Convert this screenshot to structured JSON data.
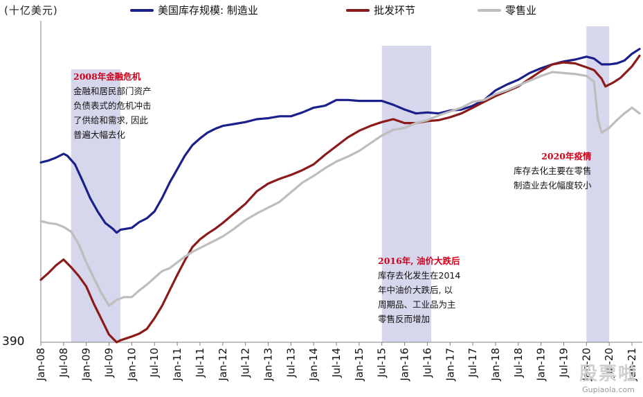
{
  "unit_label": "(十亿美元)",
  "y_min_label": "390",
  "watermark": {
    "logo_text": "股票啦",
    "site": "Gupiaola.com"
  },
  "annotations": {
    "crisis2008": {
      "title": "2008年金融危机",
      "lines": [
        "金融和居民部门资产",
        "负债表式的危机冲击",
        "了供给和需求, 因此",
        "普遍大幅去化"
      ]
    },
    "oil2016": {
      "title": "2016年, 油价大跌后",
      "lines": [
        "库存去化发生在2014",
        "年中油价大跌后, 以",
        "周期品、工业品为主",
        "零售反而增加"
      ]
    },
    "covid2020": {
      "title": "2020年疫情",
      "lines": [
        "库存去化主要在零售",
        "制造业去化幅度较小"
      ]
    }
  },
  "colors": {
    "manufacturing": "#1b1f8a",
    "wholesale": "#8b1a1a",
    "retail": "#bdbdbd",
    "shade": "#d6d6ec",
    "axis": "#808080"
  },
  "chart_data": {
    "type": "line",
    "title": "",
    "ylabel": "十亿美元",
    "ylim": [
      390,
      720
    ],
    "x_start": "2008-01",
    "x_end": "2021-03",
    "tick_labels": [
      "Jan-08",
      "Jul-08",
      "Jan-09",
      "Jul-09",
      "Jan-10",
      "Jul-10",
      "Jan-11",
      "Jul-11",
      "Jan-12",
      "Jul-12",
      "Jan-13",
      "Jul-13",
      "Jan-14",
      "Jul-14",
      "Jan-15",
      "Jul-15",
      "Jan-16",
      "Jul-16",
      "Jan-17",
      "Jul-17",
      "Jan-18",
      "Jul-18",
      "Jan-19",
      "Jul-19",
      "Jan-20",
      "Jul-20",
      "Jan-21"
    ],
    "shaded_periods": [
      [
        "2008-09",
        "2009-10"
      ],
      [
        "2015-07",
        "2016-08"
      ],
      [
        "2020-01",
        "2020-07"
      ]
    ],
    "series": [
      {
        "name": "美国库存规模: 制造业",
        "key": "manufacturing",
        "points": [
          [
            "2008-01",
            577
          ],
          [
            "2008-03",
            579
          ],
          [
            "2008-05",
            582
          ],
          [
            "2008-07",
            586
          ],
          [
            "2008-08",
            584
          ],
          [
            "2008-10",
            575
          ],
          [
            "2008-12",
            558
          ],
          [
            "2009-02",
            540
          ],
          [
            "2009-04",
            526
          ],
          [
            "2009-06",
            514
          ],
          [
            "2009-08",
            508
          ],
          [
            "2009-09",
            504
          ],
          [
            "2009-10",
            507
          ],
          [
            "2010-01",
            509
          ],
          [
            "2010-03",
            515
          ],
          [
            "2010-05",
            519
          ],
          [
            "2010-07",
            526
          ],
          [
            "2010-09",
            540
          ],
          [
            "2010-11",
            556
          ],
          [
            "2011-01",
            570
          ],
          [
            "2011-03",
            584
          ],
          [
            "2011-05",
            595
          ],
          [
            "2011-07",
            602
          ],
          [
            "2011-09",
            608
          ],
          [
            "2011-11",
            612
          ],
          [
            "2012-01",
            615
          ],
          [
            "2012-04",
            617
          ],
          [
            "2012-07",
            619
          ],
          [
            "2012-10",
            622
          ],
          [
            "2013-01",
            623
          ],
          [
            "2013-04",
            625
          ],
          [
            "2013-07",
            625
          ],
          [
            "2013-10",
            629
          ],
          [
            "2014-01",
            634
          ],
          [
            "2014-04",
            636
          ],
          [
            "2014-07",
            642
          ],
          [
            "2014-10",
            642
          ],
          [
            "2015-01",
            641
          ],
          [
            "2015-04",
            641
          ],
          [
            "2015-07",
            641
          ],
          [
            "2015-10",
            637
          ],
          [
            "2016-01",
            632
          ],
          [
            "2016-04",
            628
          ],
          [
            "2016-07",
            629
          ],
          [
            "2016-10",
            628
          ],
          [
            "2017-01",
            631
          ],
          [
            "2017-04",
            632
          ],
          [
            "2017-07",
            636
          ],
          [
            "2017-10",
            642
          ],
          [
            "2018-01",
            652
          ],
          [
            "2018-04",
            658
          ],
          [
            "2018-07",
            663
          ],
          [
            "2018-10",
            670
          ],
          [
            "2019-01",
            675
          ],
          [
            "2019-04",
            679
          ],
          [
            "2019-07",
            682
          ],
          [
            "2019-10",
            684
          ],
          [
            "2020-01",
            687
          ],
          [
            "2020-03",
            685
          ],
          [
            "2020-05",
            679
          ],
          [
            "2020-07",
            679
          ],
          [
            "2020-09",
            680
          ],
          [
            "2020-11",
            683
          ],
          [
            "2021-01",
            690
          ],
          [
            "2021-03",
            695
          ]
        ]
      },
      {
        "name": "批发环节",
        "key": "wholesale",
        "points": [
          [
            "2008-01",
            455
          ],
          [
            "2008-03",
            462
          ],
          [
            "2008-05",
            470
          ],
          [
            "2008-07",
            476
          ],
          [
            "2008-09",
            468
          ],
          [
            "2008-11",
            459
          ],
          [
            "2009-01",
            448
          ],
          [
            "2009-03",
            430
          ],
          [
            "2009-05",
            414
          ],
          [
            "2009-07",
            398
          ],
          [
            "2009-09",
            390
          ],
          [
            "2009-10",
            392
          ],
          [
            "2010-01",
            396
          ],
          [
            "2010-03",
            399
          ],
          [
            "2010-05",
            404
          ],
          [
            "2010-07",
            415
          ],
          [
            "2010-09",
            428
          ],
          [
            "2010-11",
            444
          ],
          [
            "2011-01",
            460
          ],
          [
            "2011-03",
            475
          ],
          [
            "2011-05",
            489
          ],
          [
            "2011-07",
            497
          ],
          [
            "2011-09",
            503
          ],
          [
            "2011-11",
            508
          ],
          [
            "2012-01",
            514
          ],
          [
            "2012-04",
            524
          ],
          [
            "2012-07",
            534
          ],
          [
            "2012-10",
            547
          ],
          [
            "2013-01",
            555
          ],
          [
            "2013-04",
            560
          ],
          [
            "2013-07",
            564
          ],
          [
            "2013-10",
            569
          ],
          [
            "2014-01",
            575
          ],
          [
            "2014-04",
            585
          ],
          [
            "2014-07",
            594
          ],
          [
            "2014-10",
            603
          ],
          [
            "2015-01",
            610
          ],
          [
            "2015-04",
            615
          ],
          [
            "2015-07",
            619
          ],
          [
            "2015-10",
            622
          ],
          [
            "2016-01",
            618
          ],
          [
            "2016-04",
            618
          ],
          [
            "2016-07",
            620
          ],
          [
            "2016-10",
            621
          ],
          [
            "2017-01",
            624
          ],
          [
            "2017-04",
            628
          ],
          [
            "2017-07",
            634
          ],
          [
            "2017-10",
            640
          ],
          [
            "2018-01",
            646
          ],
          [
            "2018-04",
            651
          ],
          [
            "2018-07",
            656
          ],
          [
            "2018-10",
            664
          ],
          [
            "2019-01",
            672
          ],
          [
            "2019-04",
            679
          ],
          [
            "2019-07",
            681
          ],
          [
            "2019-10",
            680
          ],
          [
            "2020-01",
            676
          ],
          [
            "2020-03",
            673
          ],
          [
            "2020-05",
            664
          ],
          [
            "2020-06",
            656
          ],
          [
            "2020-08",
            660
          ],
          [
            "2020-10",
            665
          ],
          [
            "2021-01",
            677
          ],
          [
            "2021-03",
            688
          ]
        ]
      },
      {
        "name": "零售业",
        "key": "retail",
        "points": [
          [
            "2008-01",
            516
          ],
          [
            "2008-03",
            514
          ],
          [
            "2008-05",
            513
          ],
          [
            "2008-07",
            510
          ],
          [
            "2008-09",
            505
          ],
          [
            "2008-11",
            492
          ],
          [
            "2009-01",
            473
          ],
          [
            "2009-03",
            457
          ],
          [
            "2009-05",
            441
          ],
          [
            "2009-07",
            428
          ],
          [
            "2009-09",
            434
          ],
          [
            "2009-11",
            437
          ],
          [
            "2010-01",
            437
          ],
          [
            "2010-03",
            444
          ],
          [
            "2010-05",
            450
          ],
          [
            "2010-07",
            457
          ],
          [
            "2010-09",
            464
          ],
          [
            "2010-11",
            467
          ],
          [
            "2011-01",
            473
          ],
          [
            "2011-03",
            479
          ],
          [
            "2011-05",
            484
          ],
          [
            "2011-07",
            488
          ],
          [
            "2011-09",
            492
          ],
          [
            "2011-11",
            496
          ],
          [
            "2012-01",
            500
          ],
          [
            "2012-04",
            508
          ],
          [
            "2012-07",
            517
          ],
          [
            "2012-10",
            524
          ],
          [
            "2013-01",
            530
          ],
          [
            "2013-04",
            536
          ],
          [
            "2013-07",
            546
          ],
          [
            "2013-10",
            556
          ],
          [
            "2014-01",
            563
          ],
          [
            "2014-04",
            571
          ],
          [
            "2014-07",
            578
          ],
          [
            "2014-10",
            583
          ],
          [
            "2015-01",
            589
          ],
          [
            "2015-04",
            597
          ],
          [
            "2015-07",
            605
          ],
          [
            "2015-10",
            611
          ],
          [
            "2016-01",
            613
          ],
          [
            "2016-04",
            618
          ],
          [
            "2016-07",
            621
          ],
          [
            "2016-10",
            626
          ],
          [
            "2017-01",
            630
          ],
          [
            "2017-04",
            634
          ],
          [
            "2017-07",
            640
          ],
          [
            "2017-10",
            642
          ],
          [
            "2018-01",
            648
          ],
          [
            "2018-04",
            652
          ],
          [
            "2018-07",
            657
          ],
          [
            "2018-10",
            662
          ],
          [
            "2019-01",
            667
          ],
          [
            "2019-04",
            671
          ],
          [
            "2019-07",
            670
          ],
          [
            "2019-10",
            669
          ],
          [
            "2020-01",
            667
          ],
          [
            "2020-03",
            661
          ],
          [
            "2020-04",
            622
          ],
          [
            "2020-05",
            608
          ],
          [
            "2020-07",
            613
          ],
          [
            "2020-09",
            621
          ],
          [
            "2020-11",
            628
          ],
          [
            "2021-01",
            634
          ],
          [
            "2021-03",
            628
          ]
        ]
      }
    ]
  }
}
